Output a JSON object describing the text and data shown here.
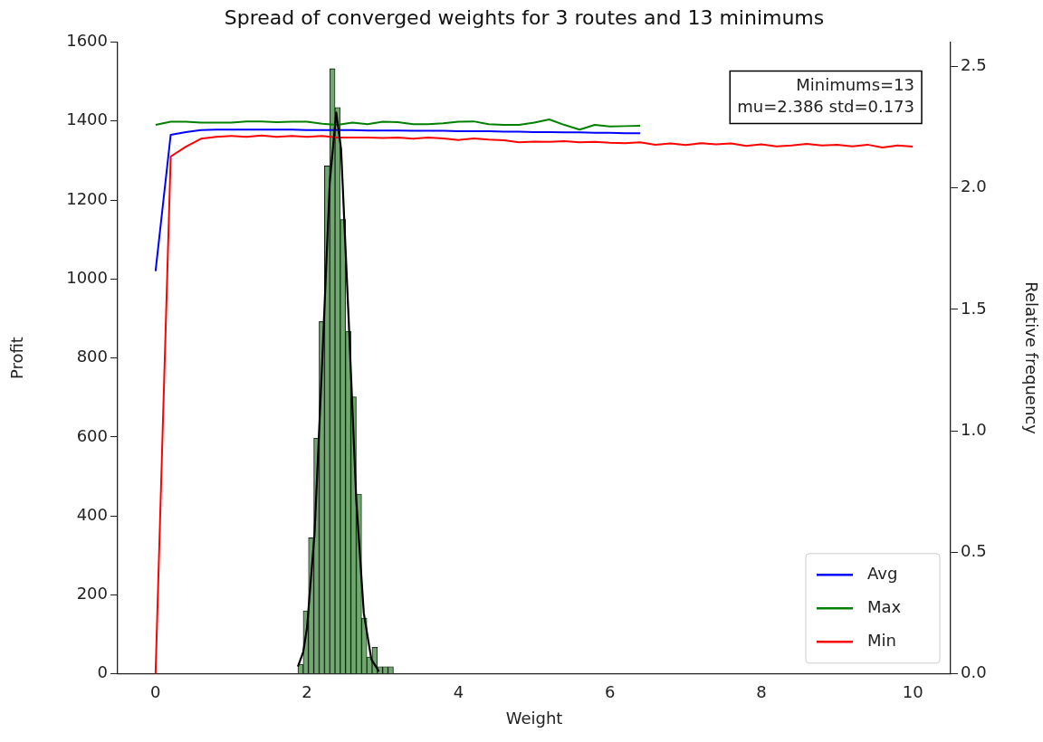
{
  "chart_data": {
    "type": "line",
    "title": "Spread of converged weights for 3 routes and 13 minimums",
    "xlabel": "Weight",
    "ylabel": "Profit",
    "y2label": "Relative frequency",
    "x": [
      0,
      0.2,
      0.4,
      0.6,
      0.8,
      1,
      1.2,
      1.4,
      1.6,
      1.8,
      2,
      2.2,
      2.4,
      2.6,
      2.8,
      3,
      3.2,
      3.4,
      3.6,
      3.8,
      4,
      4.2,
      4.4,
      4.6,
      4.8,
      5,
      5.2,
      5.4,
      5.6,
      5.8,
      6,
      6.2,
      6.4,
      6.6,
      6.8,
      7,
      7.2,
      7.4,
      7.6,
      7.8,
      8,
      8.2,
      8.4,
      8.6,
      8.8,
      9,
      9.2,
      9.4,
      9.6,
      9.8,
      10
    ],
    "series": [
      {
        "name": "Avg",
        "color": "#0000ff",
        "values": [
          1020,
          1365,
          1372,
          1377,
          1378,
          1378,
          1378,
          1378,
          1378,
          1378,
          1377,
          1377,
          1377,
          1377,
          1376,
          1376,
          1376,
          1375,
          1375,
          1375,
          1374,
          1374,
          1374,
          1373,
          1373,
          1372,
          1372,
          1371,
          1371,
          1370,
          1370,
          1369,
          1369,
          null,
          null,
          null,
          null,
          null,
          null,
          null,
          null,
          null,
          null,
          null,
          null,
          null,
          null,
          null,
          null,
          null,
          null
        ]
      },
      {
        "name": "Max",
        "color": "#008000",
        "values": [
          1390,
          1398,
          1398,
          1396,
          1396,
          1396,
          1399,
          1399,
          1397,
          1398,
          1398,
          1393,
          1390,
          1396,
          1392,
          1398,
          1397,
          1392,
          1392,
          1394,
          1398,
          1399,
          1392,
          1390,
          1390,
          1396,
          1404,
          1390,
          1378,
          1390,
          1386,
          1387,
          1388,
          null,
          null,
          null,
          null,
          null,
          null,
          null,
          null,
          null,
          null,
          null,
          null,
          null,
          null,
          null,
          null,
          null,
          null
        ]
      },
      {
        "name": "Min",
        "color": "#ff0000",
        "values": [
          0,
          1310,
          1335,
          1355,
          1360,
          1362,
          1360,
          1363,
          1360,
          1362,
          1360,
          1362,
          1358,
          1358,
          1358,
          1357,
          1358,
          1355,
          1358,
          1356,
          1352,
          1356,
          1353,
          1351,
          1346,
          1348,
          1347,
          1349,
          1346,
          1347,
          1345,
          1344,
          1346,
          1340,
          1343,
          1339,
          1344,
          1341,
          1343,
          1337,
          1341,
          1336,
          1338,
          1342,
          1338,
          1340,
          1336,
          1340,
          1333,
          1338,
          1335
        ]
      },
      {
        "type": "histogram",
        "axis": "y2",
        "color": "#4f914f",
        "bins": [
          1.88,
          1.95,
          2.02,
          2.09,
          2.16,
          2.23,
          2.3,
          2.37,
          2.44,
          2.51,
          2.58,
          2.65,
          2.72,
          2.79,
          2.86,
          2.93,
          3.0,
          3.07,
          3.14
        ],
        "values": [
          0.04,
          0.26,
          0.56,
          0.97,
          1.45,
          2.09,
          2.49,
          2.33,
          1.87,
          1.41,
          1.14,
          0.74,
          0.23,
          0.07,
          0.11,
          0.03,
          0.03,
          0.03
        ]
      },
      {
        "type": "line",
        "axis": "y2",
        "color": "#000000",
        "x": [
          1.88,
          1.95,
          2.0,
          2.1,
          2.2,
          2.3,
          2.386,
          2.45,
          2.55,
          2.65,
          2.75,
          2.85,
          2.95
        ],
        "values": [
          0.03,
          0.09,
          0.19,
          0.58,
          1.28,
          2.02,
          2.31,
          2.16,
          1.46,
          0.72,
          0.25,
          0.06,
          0.01
        ]
      }
    ],
    "annotations": [
      "Minimums=13",
      "mu=2.386 std=0.173"
    ],
    "xlim": [
      -0.5,
      10.5
    ],
    "xticks": [
      0,
      2,
      4,
      6,
      8,
      10
    ],
    "ylim": [
      0,
      1600
    ],
    "yticks": [
      0,
      200,
      400,
      600,
      800,
      1000,
      1200,
      1400,
      1600
    ],
    "y2lim": [
      0,
      2.6
    ],
    "y2ticks": [
      {
        "value": 0,
        "label": "0.0"
      },
      0.5,
      {
        "value": 1,
        "label": "1.0"
      },
      1.5,
      {
        "value": 2,
        "label": "2.0"
      },
      2.5
    ],
    "legend": "bottom right",
    "grid": false,
    "marker": "none",
    "line_style": "solid"
  }
}
